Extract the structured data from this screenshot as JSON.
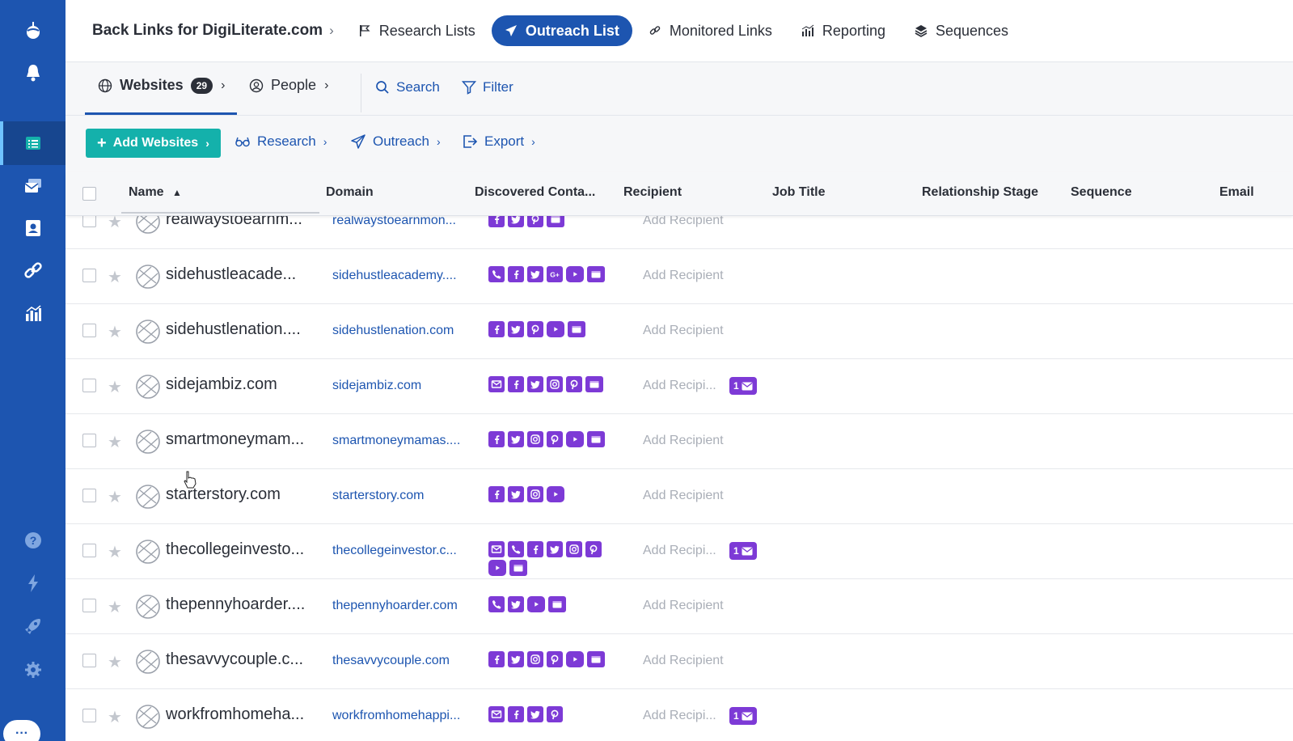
{
  "topnav": {
    "breadcrumb": "Back Links for DigiLiterate.com",
    "tabs": [
      {
        "label": "Research Lists",
        "icon": "flag-icon"
      },
      {
        "label": "Outreach List",
        "icon": "paper-plane-icon",
        "active": true
      },
      {
        "label": "Monitored Links",
        "icon": "link-icon"
      },
      {
        "label": "Reporting",
        "icon": "bar-chart-icon"
      },
      {
        "label": "Sequences",
        "icon": "layers-icon"
      }
    ]
  },
  "subtabs": {
    "websites_label": "Websites",
    "websites_count": "29",
    "people_label": "People",
    "search_label": "Search",
    "filter_label": "Filter"
  },
  "actions": {
    "add_websites": "Add Websites",
    "research": "Research",
    "outreach": "Outreach",
    "export": "Export"
  },
  "table": {
    "columns": {
      "name": "Name",
      "domain": "Domain",
      "contacts": "Discovered Conta...",
      "recipient": "Recipient",
      "job_title": "Job Title",
      "relationship_stage": "Relationship Stage",
      "sequence": "Sequence",
      "email": "Email"
    },
    "rows": [
      {
        "name": "realwaystoearnm...",
        "domain": "realwaystoearnmon...",
        "contacts": [
          "facebook",
          "twitter",
          "pinterest",
          "web"
        ],
        "recipient": "Add Recipient",
        "badge": ""
      },
      {
        "name": "sidehustleacade...",
        "domain": "sidehustleacademy....",
        "contacts": [
          "phone",
          "facebook",
          "twitter",
          "google-plus",
          "youtube",
          "web"
        ],
        "recipient": "Add Recipient",
        "badge": ""
      },
      {
        "name": "sidehustlenation....",
        "domain": "sidehustlenation.com",
        "contacts": [
          "facebook",
          "twitter",
          "pinterest",
          "youtube",
          "web"
        ],
        "recipient": "Add Recipient",
        "badge": ""
      },
      {
        "name": "sidejambiz.com",
        "domain": "sidejambiz.com",
        "contacts": [
          "email",
          "facebook",
          "twitter",
          "instagram",
          "pinterest",
          "web"
        ],
        "recipient": "Add Recipi...",
        "badge": "1"
      },
      {
        "name": "smartmoneymam...",
        "domain": "smartmoneymamas....",
        "contacts": [
          "facebook",
          "twitter",
          "instagram",
          "pinterest",
          "youtube",
          "web"
        ],
        "recipient": "Add Recipient",
        "badge": ""
      },
      {
        "name": "starterstory.com",
        "domain": "starterstory.com",
        "contacts": [
          "facebook",
          "twitter",
          "instagram",
          "youtube"
        ],
        "recipient": "Add Recipient",
        "badge": ""
      },
      {
        "name": "thecollegeinvesto...",
        "domain": "thecollegeinvestor.c...",
        "contacts": [
          "email",
          "phone",
          "facebook",
          "twitter",
          "instagram",
          "pinterest",
          "youtube",
          "web"
        ],
        "recipient": "Add Recipi...",
        "badge": "1"
      },
      {
        "name": "thepennyhoarder....",
        "domain": "thepennyhoarder.com",
        "contacts": [
          "phone",
          "twitter",
          "youtube",
          "web"
        ],
        "recipient": "Add Recipient",
        "badge": ""
      },
      {
        "name": "thesavvycouple.c...",
        "domain": "thesavvycouple.com",
        "contacts": [
          "facebook",
          "twitter",
          "instagram",
          "pinterest",
          "youtube",
          "web"
        ],
        "recipient": "Add Recipient",
        "badge": ""
      },
      {
        "name": "workfromhomeha...",
        "domain": "workfromhomehappi...",
        "contacts": [
          "email",
          "facebook",
          "twitter",
          "pinterest"
        ],
        "recipient": "Add Recipi...",
        "badge": "1"
      }
    ]
  },
  "colors": {
    "sidebar": "#1d55b0",
    "accent": "#1d55b0",
    "add_button": "#14b1ab",
    "contact_icon": "#7d3ad6"
  }
}
